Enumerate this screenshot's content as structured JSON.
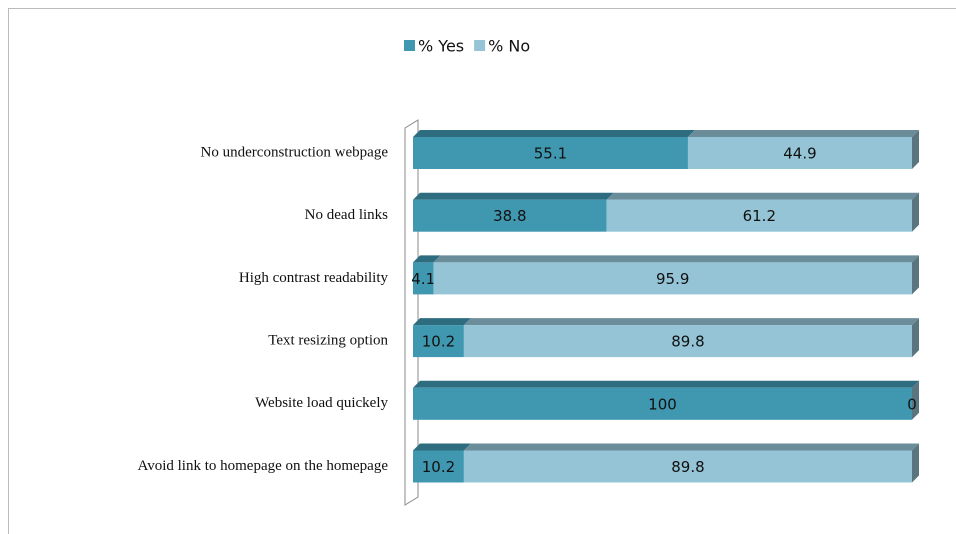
{
  "chart_data": {
    "type": "stacked_barh_3d",
    "categories": [
      "No underconstruction webpage",
      "No dead links",
      "High contrast readability",
      "Text resizing option",
      "Website load quickely",
      "Avoid link to homepage on the homepage"
    ],
    "series": [
      {
        "name": "% Yes",
        "color": "#4097b0",
        "values": [
          55.1,
          38.8,
          4.1,
          10.2,
          100,
          10.2
        ]
      },
      {
        "name": "% No",
        "color": "#94c4d6",
        "values": [
          44.9,
          61.2,
          95.9,
          89.8,
          0,
          89.8
        ]
      }
    ],
    "legend": "top"
  }
}
